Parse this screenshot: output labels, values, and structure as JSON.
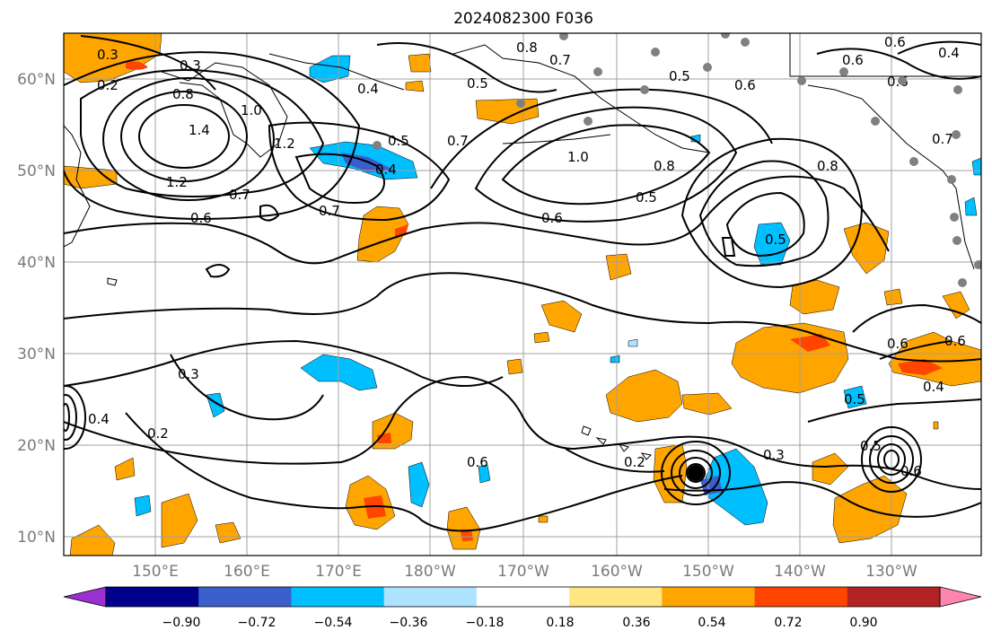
{
  "title": "2024082300 F036",
  "lat_labels": [
    "60°N",
    "50°N",
    "40°N",
    "30°N",
    "20°N",
    "10°N"
  ],
  "lon_labels": [
    "150°E",
    "160°E",
    "170°E",
    "180°W",
    "170°W",
    "160°W",
    "150°W",
    "140°W",
    "130°W"
  ],
  "colorbar": {
    "ticks": [
      "−0.90",
      "−0.72",
      "−0.54",
      "−0.36",
      "−0.18",
      "0.18",
      "0.36",
      "0.54",
      "0.72",
      "0.90"
    ],
    "colors": [
      "#9b30d0",
      "#00008b",
      "#3a5fcd",
      "#00bfff",
      "#aee3ff",
      "#ffffff",
      "#ffe680",
      "#ffa500",
      "#ff4500",
      "#b22222",
      "#ff85b0"
    ]
  },
  "contour_labels": [
    "0.3",
    "0.2",
    "0.3",
    "0.8",
    "1.4",
    "1.2",
    "1.0",
    "1.2",
    "0.4",
    "0.5",
    "0.8",
    "0.7",
    "0.4",
    "0.5",
    "0.7",
    "0.6",
    "0.7",
    "0.6",
    "1.0",
    "0.8",
    "0.5",
    "0.6",
    "0.8",
    "0.5",
    "0.5",
    "0.6",
    "0.6",
    "0.4",
    "0.6",
    "0.7",
    "0.7",
    "0.3",
    "0.2",
    "0.4",
    "0.2",
    "0.3",
    "0.5",
    "0.5",
    "0.6",
    "0.6",
    "0.6",
    "0.6",
    "0.4"
  ],
  "colors": {
    "contour": "#000000",
    "grid": "#a0a0a0",
    "coast": "#000000",
    "station": "#808080"
  }
}
